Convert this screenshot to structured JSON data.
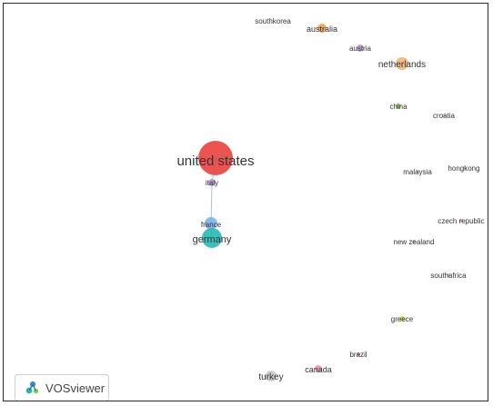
{
  "network": {
    "nodes": [
      {
        "id": "united-states",
        "label": "united states",
        "color": "#e8423f",
        "weight": 5
      },
      {
        "id": "italy",
        "label": "italy",
        "color": "#b99ad8",
        "weight": 1
      },
      {
        "id": "france",
        "label": "france",
        "color": "#7fb0e8",
        "weight": 2
      },
      {
        "id": "germany",
        "label": "germany",
        "color": "#2ab7b2",
        "weight": 3
      },
      {
        "id": "southkorea",
        "label": "southkorea",
        "color": "#cfcfcf",
        "weight": 0
      },
      {
        "id": "australia",
        "label": "australia",
        "color": "#f0a35a",
        "weight": 1
      },
      {
        "id": "austria",
        "label": "austria",
        "color": "#b5a9c9",
        "weight": 1
      },
      {
        "id": "netherlands",
        "label": "netherlands",
        "color": "#f2b47a",
        "weight": 2
      },
      {
        "id": "china",
        "label": "china",
        "color": "#8dcc5a",
        "weight": 1
      },
      {
        "id": "croatia",
        "label": "croatia",
        "color": "#d9d9d9",
        "weight": 0
      },
      {
        "id": "malaysia",
        "label": "malaysia",
        "color": "#d9d9d9",
        "weight": 0
      },
      {
        "id": "hongkong",
        "label": "hongkong",
        "color": "#d9d9d9",
        "weight": 0
      },
      {
        "id": "czech-republic",
        "label": "czech republic",
        "color": "#e6b3a8",
        "weight": 0
      },
      {
        "id": "new-zealand",
        "label": "new zealand",
        "color": "#e6c3c3",
        "weight": 0
      },
      {
        "id": "southafrica",
        "label": "southafrica",
        "color": "#e8b8c8",
        "weight": 0
      },
      {
        "id": "greece",
        "label": "greece",
        "color": "#c6d84a",
        "weight": 1
      },
      {
        "id": "brazil",
        "label": "brazil",
        "color": "#d48ba8",
        "weight": 0
      },
      {
        "id": "canada",
        "label": "canada",
        "color": "#e89aa0",
        "weight": 1
      },
      {
        "id": "turkey",
        "label": "turkey",
        "color": "#c9c9c9",
        "weight": 1
      }
    ],
    "links": [
      {
        "source": "united-states",
        "target": "italy"
      },
      {
        "source": "italy",
        "target": "france"
      },
      {
        "source": "france",
        "target": "germany"
      }
    ]
  },
  "logo": {
    "text": "VOSviewer",
    "icon": "vosviewer-logo-icon"
  }
}
